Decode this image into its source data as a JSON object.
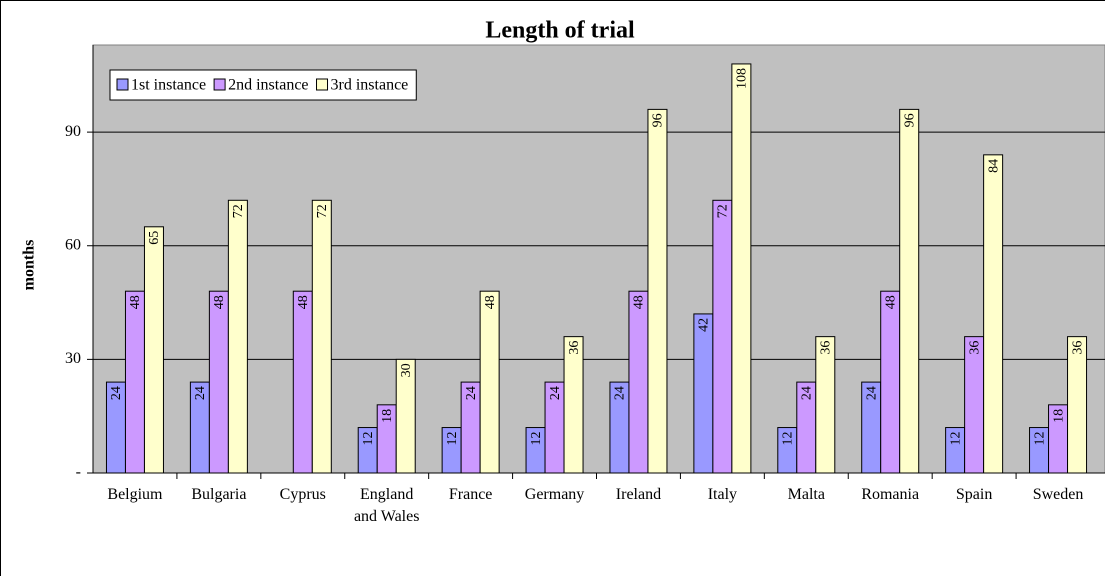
{
  "chart_data": {
    "type": "bar",
    "title": "Length of trial",
    "y_label": "months",
    "categories": [
      "Belgium",
      "Bulgaria",
      "Cyprus",
      "England and Wales",
      "France",
      "Germany",
      "Ireland",
      "Italy",
      "Malta",
      "Romania",
      "Spain",
      "Sweden"
    ],
    "series": [
      {
        "name": "1st instance",
        "color": "#9999ff",
        "values": [
          24,
          24,
          null,
          12,
          12,
          12,
          24,
          42,
          12,
          24,
          12,
          12
        ]
      },
      {
        "name": "2nd instance",
        "color": "#cc99ff",
        "values": [
          48,
          48,
          48,
          18,
          24,
          24,
          48,
          72,
          24,
          48,
          36,
          18
        ]
      },
      {
        "name": "3rd instance",
        "color": "#ffffcc",
        "values": [
          65,
          72,
          72,
          30,
          48,
          36,
          96,
          108,
          36,
          96,
          84,
          36
        ]
      }
    ],
    "ylim": [
      0,
      113
    ],
    "yticks": [
      {
        "value": 0,
        "label": "-"
      },
      30,
      60,
      90
    ],
    "grid": true,
    "legend": "top-left"
  }
}
